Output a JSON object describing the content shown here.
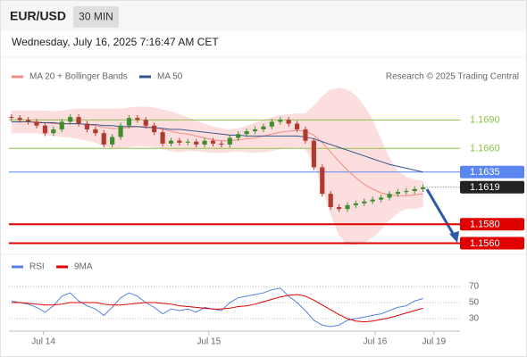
{
  "header": {
    "symbol": "EUR/USD",
    "interval": "30 MIN",
    "datetime": "Wednesday, July 16, 2025 7:16:47 AM CET",
    "attribution": "Research © 2025 Trading Central"
  },
  "chart_data": [
    {
      "type": "candlestick",
      "x": [
        0,
        1,
        2,
        3,
        4,
        5,
        6,
        7,
        8,
        9,
        10,
        11,
        12,
        13,
        14,
        15,
        16,
        17,
        18,
        19,
        20,
        21,
        22,
        23,
        24,
        25,
        26,
        27,
        28,
        29,
        30,
        31,
        32,
        33,
        34,
        35,
        36,
        37,
        38,
        39,
        40,
        41,
        42,
        43,
        44,
        45,
        46,
        47,
        48,
        49
      ],
      "open": [
        1.1693,
        1.1692,
        1.169,
        1.1688,
        1.1684,
        1.1676,
        1.168,
        1.1688,
        1.1693,
        1.1686,
        1.168,
        1.1676,
        1.1664,
        1.1672,
        1.1684,
        1.1692,
        1.169,
        1.1684,
        1.1677,
        1.1665,
        1.1668,
        1.1666,
        1.1667,
        1.1664,
        1.1668,
        1.1665,
        1.1664,
        1.1671,
        1.1675,
        1.1678,
        1.168,
        1.1683,
        1.1688,
        1.169,
        1.1686,
        1.168,
        1.1668,
        1.164,
        1.1612,
        1.1598,
        1.1596,
        1.16,
        1.1602,
        1.1604,
        1.1606,
        1.1608,
        1.1612,
        1.1614,
        1.1615,
        1.1617
      ],
      "high": [
        1.1696,
        1.1695,
        1.1693,
        1.1691,
        1.1687,
        1.1683,
        1.1691,
        1.1696,
        1.1696,
        1.1689,
        1.1683,
        1.1679,
        1.1675,
        1.1687,
        1.1695,
        1.1695,
        1.1693,
        1.1687,
        1.168,
        1.1671,
        1.1671,
        1.167,
        1.167,
        1.1671,
        1.1671,
        1.1668,
        1.1674,
        1.1678,
        1.1681,
        1.1683,
        1.1686,
        1.1691,
        1.1693,
        1.1693,
        1.1689,
        1.1683,
        1.1671,
        1.1643,
        1.1615,
        1.1601,
        1.1603,
        1.1605,
        1.1607,
        1.1609,
        1.1611,
        1.1615,
        1.1617,
        1.1618,
        1.162,
        1.1622
      ],
      "low": [
        1.1689,
        1.1687,
        1.1685,
        1.1681,
        1.1673,
        1.1673,
        1.1677,
        1.1685,
        1.1683,
        1.1677,
        1.1673,
        1.1661,
        1.1661,
        1.1669,
        1.1681,
        1.1687,
        1.1681,
        1.1674,
        1.1662,
        1.1662,
        1.1663,
        1.1663,
        1.1661,
        1.1661,
        1.1662,
        1.1661,
        1.1661,
        1.1668,
        1.1672,
        1.1675,
        1.1677,
        1.168,
        1.1685,
        1.1683,
        1.1677,
        1.1665,
        1.1637,
        1.1609,
        1.1595,
        1.1593,
        1.1593,
        1.1597,
        1.1599,
        1.1601,
        1.1603,
        1.1605,
        1.1609,
        1.1611,
        1.1612,
        1.1614
      ],
      "close": [
        1.1692,
        1.169,
        1.1688,
        1.1684,
        1.1676,
        1.168,
        1.1688,
        1.1693,
        1.1686,
        1.168,
        1.1676,
        1.1664,
        1.1672,
        1.1684,
        1.1692,
        1.169,
        1.1684,
        1.1677,
        1.1665,
        1.1668,
        1.1666,
        1.1667,
        1.1664,
        1.1668,
        1.1665,
        1.1664,
        1.1671,
        1.1675,
        1.1678,
        1.168,
        1.1683,
        1.1688,
        1.169,
        1.1686,
        1.168,
        1.1668,
        1.164,
        1.1612,
        1.1598,
        1.1596,
        1.16,
        1.1602,
        1.1604,
        1.1606,
        1.1608,
        1.1612,
        1.1614,
        1.1615,
        1.1617,
        1.1619
      ],
      "up_color": "#3e8e2f",
      "down_color": "#b03a2e",
      "indicators": [
        {
          "name": "MA 20 + Bollinger Bands",
          "color": "#f28b82",
          "band_color": "#fbd3d3",
          "values": [
            1.1688,
            1.1688,
            1.1688,
            1.1688,
            1.1687,
            1.1686,
            1.1686,
            1.1686,
            1.1686,
            1.1685,
            1.1684,
            1.1682,
            1.1681,
            1.1681,
            1.1682,
            1.1683,
            1.1683,
            1.1682,
            1.168,
            1.1678,
            1.1676,
            1.1675,
            1.1673,
            1.1671,
            1.1669,
            1.1668,
            1.1668,
            1.1669,
            1.167,
            1.1671,
            1.1673,
            1.1675,
            1.1677,
            1.1678,
            1.1679,
            1.1678,
            1.1674,
            1.1666,
            1.1656,
            1.1646,
            1.1637,
            1.1629,
            1.1622,
            1.1617,
            1.1613,
            1.1611,
            1.161,
            1.161,
            1.1611,
            1.1612
          ],
          "upper": [
            1.17,
            1.17,
            1.17,
            1.17,
            1.17,
            1.1699,
            1.17,
            1.1701,
            1.1702,
            1.1702,
            1.1702,
            1.1702,
            1.1702,
            1.1702,
            1.1703,
            1.1704,
            1.1704,
            1.1703,
            1.1701,
            1.1699,
            1.1696,
            1.1693,
            1.1689,
            1.1686,
            1.1683,
            1.1681,
            1.168,
            1.1681,
            1.1684,
            1.1687,
            1.169,
            1.1693,
            1.1695,
            1.1696,
            1.1697,
            1.1697,
            1.1705,
            1.1715,
            1.1722,
            1.1724,
            1.1722,
            1.1716,
            1.1705,
            1.169,
            1.167,
            1.165,
            1.1636,
            1.163,
            1.1627,
            1.1626
          ],
          "lower": [
            1.1676,
            1.1676,
            1.1676,
            1.1676,
            1.1674,
            1.1673,
            1.1672,
            1.1671,
            1.167,
            1.1668,
            1.1666,
            1.1662,
            1.166,
            1.166,
            1.1661,
            1.1662,
            1.1662,
            1.1661,
            1.1659,
            1.1657,
            1.1656,
            1.1657,
            1.1657,
            1.1656,
            1.1655,
            1.1655,
            1.1656,
            1.1657,
            1.1656,
            1.1655,
            1.1656,
            1.1657,
            1.1659,
            1.166,
            1.1661,
            1.1659,
            1.1643,
            1.1617,
            1.159,
            1.1568,
            1.1559,
            1.1558,
            1.1561,
            1.1566,
            1.1574,
            1.1584,
            1.1592,
            1.1596,
            1.1596,
            1.1598
          ]
        },
        {
          "name": "MA 50",
          "color": "#34558b",
          "values": [
            1.1688,
            1.1688,
            1.1688,
            1.1687,
            1.1687,
            1.1687,
            1.1686,
            1.1686,
            1.1686,
            1.1685,
            1.1685,
            1.1684,
            1.1684,
            1.1683,
            1.1683,
            1.1683,
            1.1682,
            1.1682,
            1.1681,
            1.168,
            1.168,
            1.1679,
            1.1678,
            1.1677,
            1.1676,
            1.1675,
            1.1674,
            1.1674,
            1.1673,
            1.1673,
            1.1673,
            1.1673,
            1.1673,
            1.1673,
            1.1673,
            1.1672,
            1.167,
            1.1667,
            1.1664,
            1.1661,
            1.1658,
            1.1655,
            1.1652,
            1.1649,
            1.1646,
            1.1643,
            1.1641,
            1.1639,
            1.1637,
            1.1635
          ]
        }
      ],
      "levels": [
        {
          "value": 1.169,
          "label": "1.1690",
          "color": "#8bc34a",
          "width": 1,
          "label_style": "text"
        },
        {
          "value": 1.166,
          "label": "1.1660",
          "color": "#8bc34a",
          "width": 1,
          "label_style": "text"
        },
        {
          "value": 1.1635,
          "label": "1.1635",
          "color": "#5b86f0",
          "width": 1,
          "label_style": "box"
        },
        {
          "value": 1.158,
          "label": "1.1580",
          "color": "#e00000",
          "width": 2,
          "label_style": "box"
        },
        {
          "value": 1.156,
          "label": "1.1560",
          "color": "#e00000",
          "width": 2,
          "label_style": "box"
        }
      ],
      "last_price": {
        "value": 1.1619,
        "label": "1.1619",
        "color": "#222222"
      },
      "xlim": [
        -0.3,
        53.4
      ],
      "ylim": [
        1.1551,
        1.1727
      ]
    },
    {
      "type": "line",
      "x": [
        0,
        1,
        2,
        3,
        4,
        5,
        6,
        7,
        8,
        9,
        10,
        11,
        12,
        13,
        14,
        15,
        16,
        17,
        18,
        19,
        20,
        21,
        22,
        23,
        24,
        25,
        26,
        27,
        28,
        29,
        30,
        31,
        32,
        33,
        34,
        35,
        36,
        37,
        38,
        39,
        40,
        41,
        42,
        43,
        44,
        45,
        46,
        47,
        48,
        49
      ],
      "series": [
        {
          "name": "RSI",
          "color": "#5b7fe0",
          "values": [
            52,
            50,
            48,
            44,
            38,
            46,
            58,
            62,
            52,
            46,
            42,
            34,
            44,
            56,
            62,
            58,
            50,
            44,
            36,
            42,
            40,
            42,
            38,
            44,
            42,
            40,
            50,
            56,
            58,
            60,
            62,
            66,
            68,
            58,
            50,
            40,
            28,
            22,
            20,
            22,
            28,
            30,
            32,
            34,
            36,
            40,
            44,
            46,
            52,
            55
          ]
        },
        {
          "name": "9MA",
          "color": "#e00000",
          "values": [
            50,
            50,
            49,
            48,
            47,
            47,
            48,
            50,
            50,
            50,
            50,
            48,
            47,
            47,
            48,
            49,
            50,
            50,
            49,
            48,
            46,
            45,
            44,
            43,
            42,
            42,
            43,
            45,
            46,
            48,
            51,
            54,
            57,
            59,
            60,
            58,
            53,
            47,
            41,
            35,
            30,
            27,
            26,
            27,
            29,
            31,
            34,
            37,
            40,
            43
          ]
        }
      ],
      "xlim": [
        -0.3,
        53.4
      ],
      "ylim": [
        15.6,
        82.2
      ],
      "yticks": [
        30,
        50,
        70
      ],
      "xticks": [
        {
          "value": 3.8,
          "label": "Jul 14"
        },
        {
          "value": 23.5,
          "label": "Jul 15"
        },
        {
          "value": 43.3,
          "label": "Jul 16"
        },
        {
          "value": 50.3,
          "label": "Jul 19"
        }
      ]
    }
  ]
}
